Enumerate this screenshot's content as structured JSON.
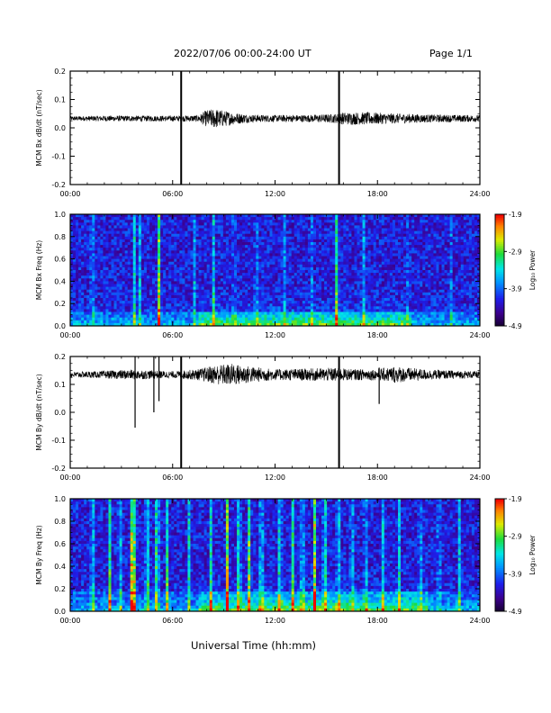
{
  "header": {
    "title": "2022/07/06  00:00-24:00 UT",
    "page": "Page 1/1"
  },
  "xlabel": "Universal Time (hh:mm)",
  "colorbar": {
    "label": "Log₁₀ Power",
    "ticks": [
      "-1.9",
      "-2.9",
      "-3.9",
      "-4.9"
    ]
  },
  "chart_data": [
    {
      "type": "line",
      "ylabel": "MCM Bx dB/dt (nT/sec)",
      "xlim": [
        0,
        24
      ],
      "ylim": [
        -0.2,
        0.2
      ],
      "x_ticks": [
        "00:00",
        "06:00",
        "12:00",
        "18:00",
        "24:00"
      ],
      "y_ticks": [
        "0.2",
        "0.1",
        "0.0",
        "-0.1",
        "-0.2"
      ],
      "baseline": 0.033,
      "noise_envelope": {
        "x": [
          0,
          2,
          6,
          7.5,
          8.0,
          8.5,
          9.5,
          10.5,
          12,
          14,
          15.5,
          16.0,
          17.5,
          19,
          21,
          24
        ],
        "amp": [
          0.008,
          0.01,
          0.01,
          0.012,
          0.03,
          0.035,
          0.022,
          0.014,
          0.012,
          0.013,
          0.016,
          0.022,
          0.022,
          0.018,
          0.014,
          0.012
        ]
      },
      "spikes": [
        {
          "t": 6.5,
          "ymin": -0.2,
          "ymax": 0.2
        },
        {
          "t": 15.75,
          "ymin": -0.2,
          "ymax": 0.2
        }
      ]
    },
    {
      "type": "heatmap",
      "ylabel": "MCM Bx Freq (Hz)",
      "xlim": [
        0,
        24
      ],
      "ylim": [
        0.0,
        1.0
      ],
      "x_ticks": [
        "00:00",
        "06:00",
        "12:00",
        "18:00",
        "24:00"
      ],
      "y_ticks": [
        "1.0",
        "0.8",
        "0.6",
        "0.4",
        "0.2",
        "0.0"
      ],
      "clim": [
        -4.9,
        -1.9
      ],
      "activity": [
        {
          "t": 1.3,
          "p": 0.35
        },
        {
          "t": 3.8,
          "p": 0.55
        },
        {
          "t": 4.1,
          "p": 0.4
        },
        {
          "t": 5.2,
          "p": 0.65
        },
        {
          "t": 7.3,
          "p": 0.3
        },
        {
          "t": 8.4,
          "p": 0.35
        },
        {
          "t": 9.6,
          "p": 0.3
        },
        {
          "t": 10.9,
          "p": 0.3
        },
        {
          "t": 12.6,
          "p": 0.3
        },
        {
          "t": 14.2,
          "p": 0.25
        },
        {
          "t": 15.6,
          "p": 0.55
        },
        {
          "t": 17.2,
          "p": 0.25
        },
        {
          "t": 19.8,
          "p": 0.2
        },
        {
          "t": 22.3,
          "p": 0.2
        }
      ],
      "low_freq_band": {
        "fmax": 0.12,
        "t_start": 7.5,
        "t_end": 20
      }
    },
    {
      "type": "line",
      "ylabel": "MCM By dB/dt (nT/sec)",
      "xlim": [
        0,
        24
      ],
      "ylim": [
        -0.2,
        0.2
      ],
      "x_ticks": [
        "00:00",
        "06:00",
        "12:00",
        "18:00",
        "24:00"
      ],
      "y_ticks": [
        "0.2",
        "0.1",
        "0.0",
        "-0.1",
        "-0.2"
      ],
      "baseline": 0.135,
      "noise_envelope": {
        "x": [
          0,
          1.5,
          3.5,
          5,
          6,
          7.5,
          8.5,
          9.5,
          10.5,
          12,
          14,
          15.5,
          16.5,
          18,
          19,
          21,
          24
        ],
        "amp": [
          0.01,
          0.012,
          0.018,
          0.015,
          0.012,
          0.02,
          0.035,
          0.04,
          0.03,
          0.02,
          0.022,
          0.025,
          0.02,
          0.02,
          0.03,
          0.018,
          0.012
        ]
      },
      "spikes": [
        {
          "t": 3.8,
          "ymin": -0.055,
          "ymax": 0.2
        },
        {
          "t": 4.9,
          "ymin": 0.0,
          "ymax": 0.2
        },
        {
          "t": 5.2,
          "ymin": 0.04,
          "ymax": 0.2
        },
        {
          "t": 6.5,
          "ymin": -0.2,
          "ymax": 0.2
        },
        {
          "t": 15.75,
          "ymin": -0.2,
          "ymax": 0.2
        },
        {
          "t": 18.1,
          "ymin": 0.03,
          "ymax": 0.16
        }
      ]
    },
    {
      "type": "heatmap",
      "ylabel": "MCM By Freq (Hz)",
      "xlim": [
        0,
        24
      ],
      "ylim": [
        0.0,
        1.0
      ],
      "x_ticks": [
        "00:00",
        "06:00",
        "12:00",
        "18:00",
        "24:00"
      ],
      "y_ticks": [
        "1.0",
        "0.8",
        "0.6",
        "0.4",
        "0.2",
        "0.0"
      ],
      "clim": [
        -4.9,
        -1.9
      ],
      "activity": [
        {
          "t": 1.3,
          "p": 0.6
        },
        {
          "t": 2.3,
          "p": 0.65
        },
        {
          "t": 2.9,
          "p": 0.55
        },
        {
          "t": 3.6,
          "p": 0.7
        },
        {
          "t": 3.8,
          "p": 0.9
        },
        {
          "t": 4.5,
          "p": 0.7
        },
        {
          "t": 5.1,
          "p": 0.9
        },
        {
          "t": 5.7,
          "p": 0.55
        },
        {
          "t": 7.0,
          "p": 0.55
        },
        {
          "t": 8.2,
          "p": 0.6
        },
        {
          "t": 9.2,
          "p": 0.7
        },
        {
          "t": 9.9,
          "p": 0.8
        },
        {
          "t": 10.5,
          "p": 0.65
        },
        {
          "t": 11.2,
          "p": 0.7
        },
        {
          "t": 12.3,
          "p": 0.7
        },
        {
          "t": 13.0,
          "p": 0.75
        },
        {
          "t": 13.6,
          "p": 0.6
        },
        {
          "t": 14.3,
          "p": 0.8
        },
        {
          "t": 14.9,
          "p": 0.75
        },
        {
          "t": 15.7,
          "p": 0.55
        },
        {
          "t": 16.5,
          "p": 0.5
        },
        {
          "t": 17.3,
          "p": 0.45
        },
        {
          "t": 18.3,
          "p": 0.45
        },
        {
          "t": 19.3,
          "p": 0.4
        },
        {
          "t": 20.5,
          "p": 0.4
        },
        {
          "t": 21.6,
          "p": 0.35
        },
        {
          "t": 22.8,
          "p": 0.35
        }
      ],
      "low_freq_band": {
        "fmax": 0.18,
        "t_start": 7.5,
        "t_end": 21
      }
    }
  ]
}
